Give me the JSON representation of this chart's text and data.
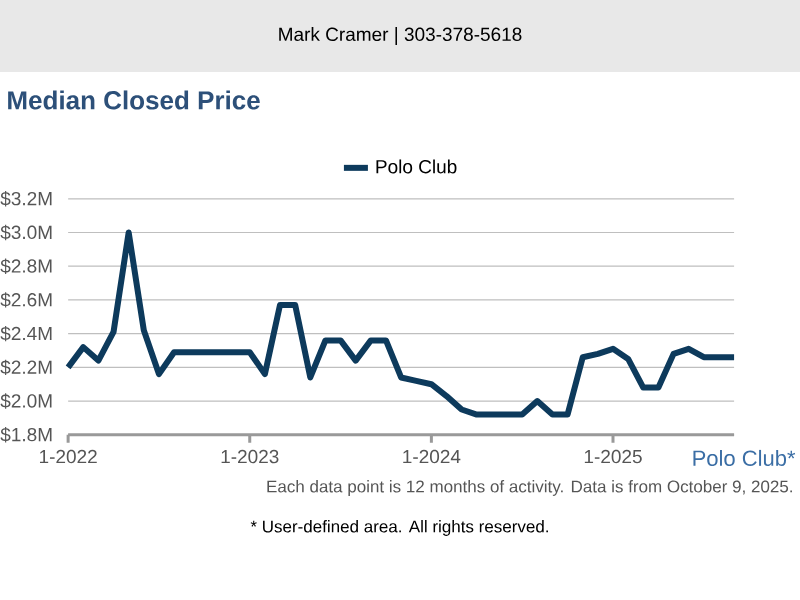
{
  "chart_data": {
    "type": "line",
    "title": "Median Closed Price",
    "x": [
      "2022-01",
      "2022-02",
      "2022-03",
      "2022-04",
      "2022-05",
      "2022-06",
      "2022-07",
      "2022-08",
      "2022-09",
      "2022-10",
      "2022-11",
      "2022-12",
      "2023-01",
      "2023-02",
      "2023-03",
      "2023-04",
      "2023-05",
      "2023-06",
      "2023-07",
      "2023-08",
      "2023-09",
      "2023-10",
      "2023-11",
      "2023-12",
      "2024-01",
      "2024-02",
      "2024-03",
      "2024-04",
      "2024-05",
      "2024-06",
      "2024-07",
      "2024-08",
      "2024-09",
      "2024-10",
      "2024-11",
      "2024-12",
      "2025-01",
      "2025-02",
      "2025-03",
      "2025-04",
      "2025-05",
      "2025-06",
      "2025-07",
      "2025-08",
      "2025-09"
    ],
    "series": [
      {
        "name": "Polo Club",
        "color": "#0d3a5c",
        "values": [
          2.2,
          2.32,
          2.24,
          2.41,
          3.0,
          2.42,
          2.16,
          2.29,
          2.29,
          2.29,
          2.29,
          2.29,
          2.29,
          2.16,
          2.57,
          2.57,
          2.14,
          2.36,
          2.36,
          2.24,
          2.36,
          2.36,
          2.14,
          2.12,
          2.1,
          2.03,
          1.95,
          1.92,
          1.92,
          1.92,
          1.92,
          2.0,
          1.92,
          1.92,
          2.26,
          2.28,
          2.31,
          2.25,
          2.08,
          2.08,
          2.28,
          2.31,
          2.26,
          2.26,
          2.26
        ]
      }
    ],
    "xlim": [
      "2022-01",
      "2025-09"
    ],
    "xticks": [
      {
        "value": "2022-01",
        "label": "1-2022"
      },
      {
        "value": "2023-01",
        "label": "1-2023"
      },
      {
        "value": "2024-01",
        "label": "1-2024"
      },
      {
        "value": "2025-01",
        "label": "1-2025"
      }
    ],
    "ylim": [
      1.8,
      3.2
    ],
    "yticks": [
      {
        "value": 1.8,
        "label": "$1.8M"
      },
      {
        "value": 2.0,
        "label": "$2.0M"
      },
      {
        "value": 2.2,
        "label": "$2.2M"
      },
      {
        "value": 2.4,
        "label": "$2.4M"
      },
      {
        "value": 2.6,
        "label": "$2.6M"
      },
      {
        "value": 2.8,
        "label": "$2.8M"
      },
      {
        "value": 3.0,
        "label": "$3.0M"
      },
      {
        "value": 3.2,
        "label": "$3.2M"
      }
    ],
    "grid": "y",
    "legend": "top",
    "marker": "none",
    "line_style": "solid",
    "annotations": [
      "Mark Cramer | 303-378-5618",
      "Polo Club*",
      "Each data point is 12 months of activity. Data is from October 9, 2025.",
      "* User-defined area. All rights reserved."
    ]
  }
}
